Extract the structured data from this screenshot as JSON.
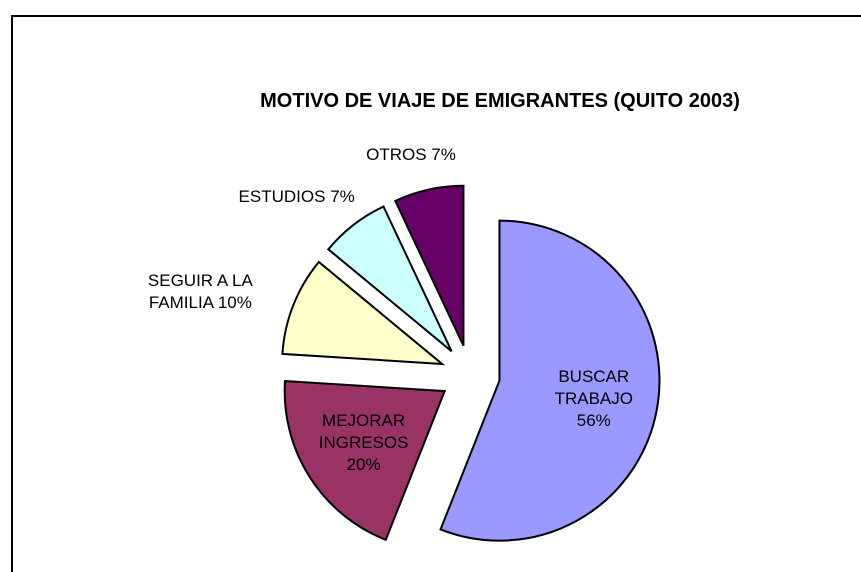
{
  "chart_data": {
    "type": "pie",
    "title": "MOTIVO DE VIAJE DE EMIGRANTES (QUITO 2003)",
    "categories": [
      "BUSCAR TRABAJO",
      "MEJORAR INGRESOS",
      "SEGUIR A LA FAMILIA",
      "ESTUDIOS",
      "OTROS"
    ],
    "values": [
      56,
      20,
      10,
      7,
      7
    ],
    "value_labels": [
      "56%",
      "20%",
      "10%",
      "7%",
      "7%"
    ],
    "colors": [
      "#9999ff",
      "#993366",
      "#ffffcc",
      "#ccffff",
      "#660066"
    ]
  }
}
